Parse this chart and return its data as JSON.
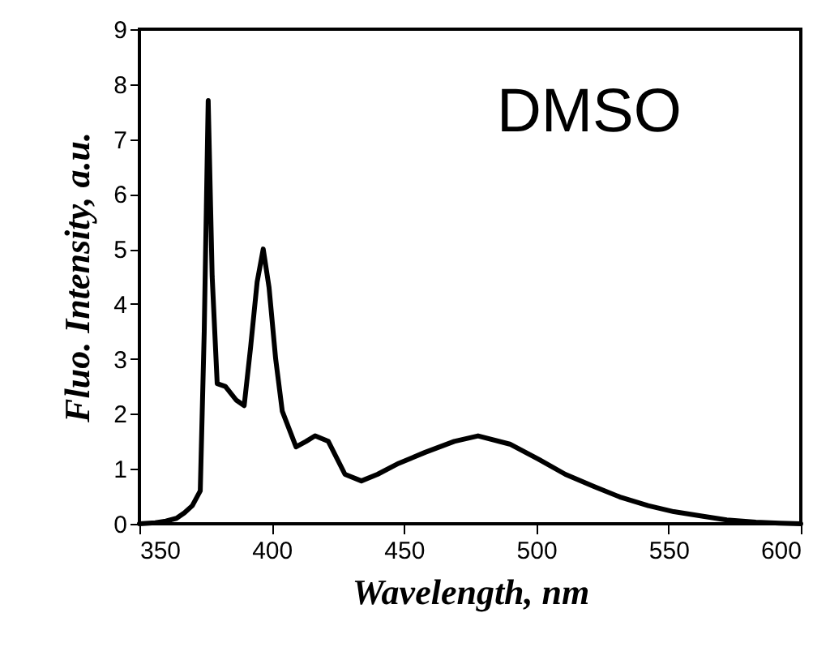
{
  "chart_data": {
    "type": "line",
    "xlabel": "Wavelength, nm",
    "ylabel": "Fluo. Intensity, a.u.",
    "annotations": [
      "DMSO"
    ],
    "xlim": [
      350,
      600
    ],
    "xticks": [
      350,
      400,
      450,
      500,
      550,
      600
    ],
    "ylim": [
      0,
      9
    ],
    "yticks": [
      0,
      1,
      2,
      3,
      4,
      5,
      6,
      7,
      8,
      9
    ],
    "grid": false,
    "marker": "none",
    "line_style": "solid",
    "series": [
      {
        "color": "#000000",
        "x": [
          350,
          356,
          360,
          364,
          367,
          370,
          373,
          374.5,
          376,
          377.5,
          379.4,
          382.5,
          386.6,
          389.6,
          392,
          394.5,
          396.8,
          399,
          401.5,
          404,
          409.2,
          413,
          416.4,
          421.4,
          427.7,
          433.9,
          440,
          448,
          458,
          469,
          478,
          490,
          501,
          511,
          521.8,
          532,
          542.3,
          552,
          562.6,
          572,
          583,
          592,
          600
        ],
        "values": [
          0,
          0.02,
          0.05,
          0.1,
          0.2,
          0.33,
          0.6,
          3.5,
          7.7,
          4.5,
          2.55,
          2.5,
          2.25,
          2.15,
          3.2,
          4.4,
          5.0,
          4.3,
          3.0,
          2.05,
          1.4,
          1.5,
          1.6,
          1.5,
          0.9,
          0.78,
          0.9,
          1.1,
          1.3,
          1.5,
          1.6,
          1.45,
          1.17,
          0.9,
          0.68,
          0.48,
          0.33,
          0.22,
          0.14,
          0.07,
          0.03,
          0.01,
          0
        ]
      }
    ]
  }
}
